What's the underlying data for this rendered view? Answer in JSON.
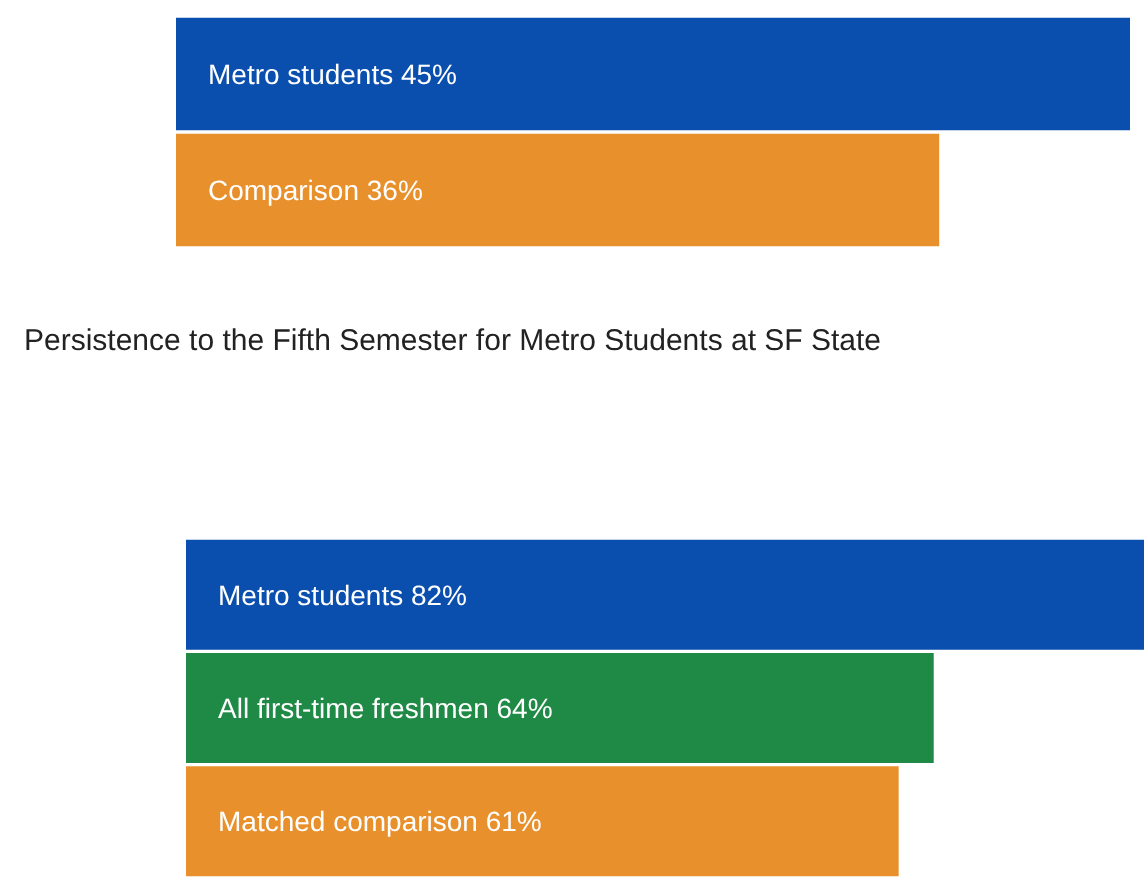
{
  "chart_data": [
    {
      "type": "bar",
      "orientation": "horizontal",
      "categories": [
        null,
        null
      ],
      "values": [
        45,
        36
      ],
      "colors": [
        "#0b4fae",
        "#e8902c"
      ],
      "value_labels": [
        "Metro students 45%",
        "Comparison 36%"
      ]
    },
    {
      "type": "bar",
      "orientation": "horizontal",
      "title": "Persistence to the Fifth Semester for Metro Students at SF State",
      "categories": [
        null,
        null,
        null
      ],
      "values": [
        82,
        64,
        61
      ],
      "colors": [
        "#0b4fae",
        "#1f8a45",
        "#e8902c"
      ],
      "value_labels": [
        "Metro students 82%",
        "All first-time freshmen 64%",
        "Matched comparison 61%"
      ]
    }
  ]
}
